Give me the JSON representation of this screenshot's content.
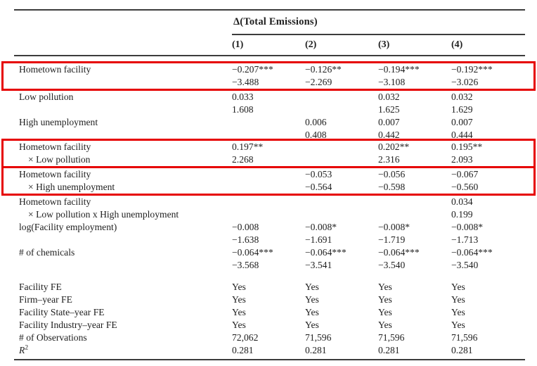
{
  "table": {
    "dep_var": "Δ(Total Emissions)",
    "columns": [
      "(1)",
      "(2)",
      "(3)",
      "(4)"
    ],
    "groups": [
      {
        "highlight": true,
        "lines": [
          {
            "label": "Hometown facility",
            "values": [
              "−0.207***",
              "−0.126**",
              "−0.194***",
              "−0.192***"
            ]
          },
          {
            "label": "",
            "values": [
              "−3.488",
              "−2.269",
              "−3.108",
              "−3.026"
            ]
          }
        ]
      },
      {
        "highlight": false,
        "lines": [
          {
            "label": "Low pollution",
            "values": [
              "0.033",
              "",
              "0.032",
              "0.032"
            ]
          },
          {
            "label": "",
            "values": [
              "1.608",
              "",
              "1.625",
              "1.629"
            ]
          }
        ]
      },
      {
        "highlight": false,
        "lines": [
          {
            "label": "High unemployment",
            "values": [
              "",
              "0.006",
              "0.007",
              "0.007"
            ]
          },
          {
            "label": "",
            "values": [
              "",
              "0.408",
              "0.442",
              "0.444"
            ]
          }
        ]
      },
      {
        "highlight": true,
        "lines": [
          {
            "label": "Hometown facility",
            "values": [
              "0.197**",
              "",
              "0.202**",
              "0.195**"
            ]
          },
          {
            "label": "× Low pollution",
            "indent": true,
            "values": [
              "2.268",
              "",
              "2.316",
              "2.093"
            ]
          }
        ]
      },
      {
        "highlight": true,
        "lines": [
          {
            "label": "Hometown facility",
            "values": [
              "",
              "−0.053",
              "−0.056",
              "−0.067"
            ]
          },
          {
            "label": "× High unemployment",
            "indent": true,
            "values": [
              "",
              "−0.564",
              "−0.598",
              "−0.560"
            ]
          }
        ]
      },
      {
        "highlight": false,
        "lines": [
          {
            "label": "Hometown facility",
            "values": [
              "",
              "",
              "",
              "0.034"
            ]
          },
          {
            "label": "× Low pollution x High unemployment",
            "indent": true,
            "values": [
              "",
              "",
              "",
              "0.199"
            ]
          }
        ]
      },
      {
        "highlight": false,
        "lines": [
          {
            "label": "log(Facility employment)",
            "values": [
              "−0.008",
              "−0.008*",
              "−0.008*",
              "−0.008*"
            ]
          },
          {
            "label": "",
            "values": [
              "−1.638",
              "−1.691",
              "−1.719",
              "−1.713"
            ]
          }
        ]
      },
      {
        "highlight": false,
        "lines": [
          {
            "label": "# of chemicals",
            "values": [
              "−0.064***",
              "−0.064***",
              "−0.064***",
              "−0.064***"
            ]
          },
          {
            "label": "",
            "values": [
              "−3.568",
              "−3.541",
              "−3.540",
              "−3.540"
            ]
          }
        ]
      },
      {
        "highlight": false,
        "footer": true,
        "lines": [
          {
            "label": "Facility FE",
            "values": [
              "Yes",
              "Yes",
              "Yes",
              "Yes"
            ]
          },
          {
            "label": "Firm–year FE",
            "values": [
              "Yes",
              "Yes",
              "Yes",
              "Yes"
            ]
          },
          {
            "label": "Facility State–year FE",
            "values": [
              "Yes",
              "Yes",
              "Yes",
              "Yes"
            ]
          },
          {
            "label": "Facility Industry–year FE",
            "values": [
              "Yes",
              "Yes",
              "Yes",
              "Yes"
            ]
          },
          {
            "label": "# of Observations",
            "values": [
              "72,062",
              "71,596",
              "71,596",
              "71,596"
            ]
          },
          {
            "label": "R",
            "sup": "2",
            "italic": true,
            "values": [
              "0.281",
              "0.281",
              "0.281",
              "0.281"
            ]
          }
        ]
      }
    ],
    "colors": {
      "highlight_border": "#e60000",
      "rule": "#3c3c3c",
      "text": "#1e1e1e"
    }
  }
}
